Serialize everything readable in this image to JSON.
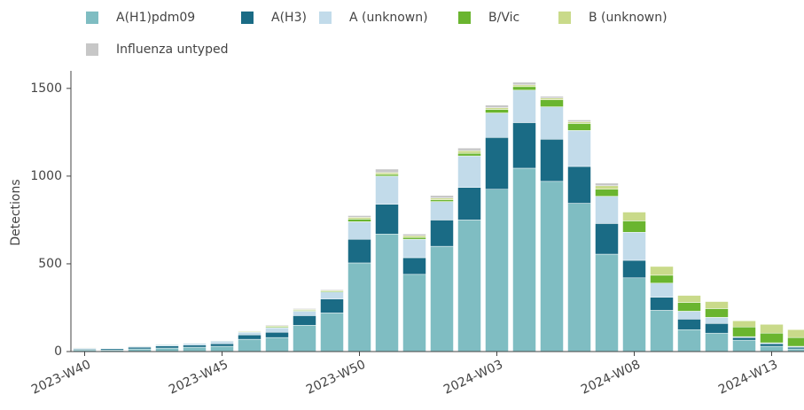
{
  "chart_data": {
    "type": "stacked_bar",
    "y_label": "Detections",
    "categories": [
      "2023-W40",
      null,
      null,
      null,
      null,
      "2023-W45",
      null,
      null,
      null,
      null,
      "2023-W50",
      null,
      null,
      null,
      null,
      "2024-W03",
      null,
      null,
      null,
      null,
      "2024-W08",
      null,
      null,
      null,
      null,
      "2024-W13",
      null
    ],
    "series": [
      {
        "name": "A(H1)pdm09",
        "color": "#7fbdc2",
        "values": [
          10,
          8,
          15,
          20,
          25,
          30,
          70,
          80,
          150,
          220,
          505,
          670,
          440,
          600,
          750,
          925,
          1045,
          970,
          845,
          555,
          420,
          235,
          125,
          105,
          65,
          30,
          15
        ]
      },
      {
        "name": "A(H3)",
        "color": "#1a6b85",
        "values": [
          5,
          8,
          10,
          12,
          12,
          15,
          25,
          30,
          55,
          80,
          135,
          170,
          95,
          150,
          185,
          295,
          260,
          240,
          210,
          175,
          100,
          75,
          60,
          55,
          15,
          15,
          10
        ]
      },
      {
        "name": "A (unknown)",
        "color": "#c2dbea",
        "values": [
          5,
          2,
          5,
          8,
          10,
          15,
          15,
          25,
          25,
          40,
          100,
          160,
          105,
          105,
          180,
          140,
          185,
          185,
          205,
          155,
          160,
          80,
          45,
          35,
          5,
          5,
          5
        ]
      },
      {
        "name": "B/Vic",
        "color": "#6ab52f",
        "values": [
          0,
          0,
          0,
          2,
          1,
          2,
          3,
          5,
          5,
          5,
          15,
          10,
          10,
          10,
          15,
          20,
          20,
          40,
          40,
          40,
          65,
          45,
          50,
          50,
          55,
          55,
          50
        ]
      },
      {
        "name": "B (unknown)",
        "color": "#c9da8a",
        "values": [
          3,
          1,
          3,
          2,
          1,
          2,
          4,
          5,
          5,
          5,
          10,
          10,
          10,
          10,
          15,
          10,
          10,
          10,
          10,
          20,
          50,
          50,
          40,
          40,
          35,
          50,
          45
        ]
      },
      {
        "name": "Influenza untyped",
        "color": "#c7c7c7",
        "values": [
          2,
          1,
          2,
          1,
          1,
          1,
          3,
          5,
          5,
          5,
          10,
          20,
          10,
          15,
          15,
          15,
          15,
          10,
          10,
          15,
          0,
          0,
          0,
          0,
          0,
          0,
          0
        ]
      }
    ],
    "ylim": [
      0,
      1600
    ],
    "yticks": [
      0,
      500,
      1000,
      1500
    ]
  }
}
